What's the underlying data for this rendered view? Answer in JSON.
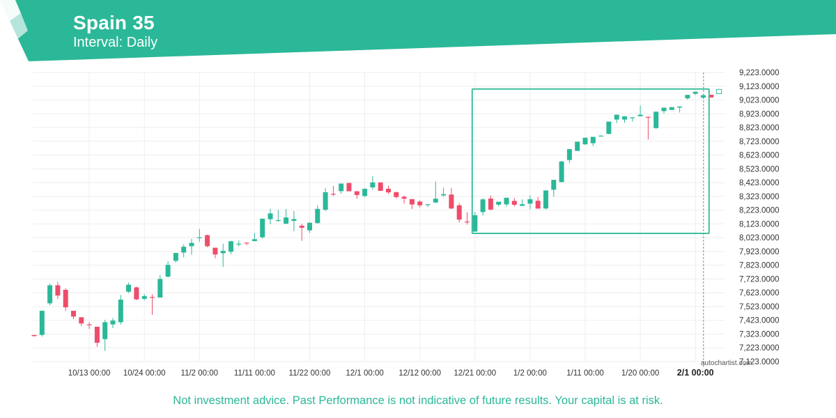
{
  "header": {
    "title": "Spain 35",
    "subtitle": "Interval: Daily"
  },
  "watermark": "autochartist.com",
  "disclaimer": "Not investment advice. Past Performance is not indicative of future results. Your capital is at risk.",
  "colors": {
    "brand": "#2bb898",
    "up": "#2bb898",
    "down": "#ee4d6a",
    "pattern_box": "#3fbf9e"
  },
  "chart_data": {
    "type": "candlestick",
    "title": "Spain 35",
    "ylim": [
      7123,
      9223
    ],
    "y_ticks": [
      "9,223.0000",
      "9,123.0000",
      "9,023.0000",
      "8,923.0000",
      "8,823.0000",
      "8,723.0000",
      "8,623.0000",
      "8,523.0000",
      "8,423.0000",
      "8,323.0000",
      "8,223.0000",
      "8,123.0000",
      "8,023.0000",
      "7,923.0000",
      "7,823.0000",
      "7,723.0000",
      "7,623.0000",
      "7,523.0000",
      "7,423.0000",
      "7,323.0000",
      "7,223.0000",
      "7,123.0000"
    ],
    "x_ticks": [
      {
        "label": "10/13 00:00",
        "index": 7
      },
      {
        "label": "10/24 00:00",
        "index": 14
      },
      {
        "label": "11/2 00:00",
        "index": 21
      },
      {
        "label": "11/11 00:00",
        "index": 28
      },
      {
        "label": "11/22 00:00",
        "index": 35
      },
      {
        "label": "12/1 00:00",
        "index": 42
      },
      {
        "label": "12/12 00:00",
        "index": 49
      },
      {
        "label": "12/21 00:00",
        "index": 56
      },
      {
        "label": "1/2 00:00",
        "index": 63
      },
      {
        "label": "1/11 00:00",
        "index": 70
      },
      {
        "label": "1/20 00:00",
        "index": 77
      },
      {
        "label": "2/1 00:00",
        "index": 84,
        "bold": true
      }
    ],
    "candles": [
      [
        7316,
        7316,
        7308,
        7306
      ],
      [
        7317,
        7493,
        7492,
        7305
      ],
      [
        7546,
        7689,
        7677,
        7532
      ],
      [
        7677,
        7702,
        7603,
        7578
      ],
      [
        7644,
        7657,
        7517,
        7490
      ],
      [
        7492,
        7492,
        7450,
        7431
      ],
      [
        7445,
        7445,
        7400,
        7380
      ],
      [
        7393,
        7410,
        7387,
        7360
      ],
      [
        7376,
        7376,
        7260,
        7230
      ],
      [
        7286,
        7426,
        7409,
        7200
      ],
      [
        7393,
        7440,
        7421,
        7366
      ],
      [
        7409,
        7607,
        7573,
        7392
      ],
      [
        7630,
        7697,
        7681,
        7620
      ],
      [
        7662,
        7667,
        7575,
        7569
      ],
      [
        7579,
        7614,
        7598,
        7569
      ],
      [
        7592,
        7612,
        7591,
        7462
      ],
      [
        7588,
        7752,
        7723,
        7588
      ],
      [
        7740,
        7851,
        7825,
        7734
      ],
      [
        7855,
        7897,
        7912,
        7842
      ],
      [
        7915,
        7974,
        7957,
        7880
      ],
      [
        7961,
        8014,
        7985,
        7900
      ],
      [
        8021,
        8086,
        8025,
        7992
      ],
      [
        8041,
        8046,
        7961,
        7953
      ],
      [
        7950,
        7950,
        7901,
        7873
      ],
      [
        7910,
        7979,
        7927,
        7810
      ],
      [
        7921,
        8000,
        7997,
        7903
      ],
      [
        7973,
        8003,
        7979,
        7960
      ],
      [
        7987,
        7980,
        7986,
        7967
      ],
      [
        7998,
        8058,
        8012,
        7996
      ],
      [
        8026,
        8160,
        8161,
        8016
      ],
      [
        8157,
        8233,
        8199,
        8121
      ],
      [
        8147,
        8225,
        8150,
        8140
      ],
      [
        8124,
        8232,
        8170,
        8130
      ],
      [
        8145,
        8216,
        8158,
        8070
      ],
      [
        8110,
        8124,
        8095,
        8000
      ],
      [
        8076,
        8135,
        8131,
        8058
      ],
      [
        8129,
        8258,
        8232,
        8125
      ],
      [
        8226,
        8382,
        8353,
        8216
      ],
      [
        8342,
        8399,
        8337,
        8324
      ],
      [
        8361,
        8398,
        8416,
        8342
      ],
      [
        8420,
        8422,
        8360,
        8360
      ],
      [
        8360,
        8358,
        8333,
        8305
      ],
      [
        8326,
        8381,
        8378,
        8317
      ],
      [
        8388,
        8470,
        8424,
        8371
      ],
      [
        8424,
        8402,
        8363,
        8380
      ],
      [
        8378,
        8400,
        8352,
        8340
      ],
      [
        8353,
        8358,
        8318,
        8308
      ],
      [
        8320,
        8329,
        8306,
        8270
      ],
      [
        8303,
        8303,
        8264,
        8231
      ],
      [
        8285,
        8295,
        8258,
        8243
      ],
      [
        8263,
        8266,
        8266,
        8245
      ],
      [
        8278,
        8430,
        8306,
        8275
      ],
      [
        8330,
        8386,
        8339,
        8320
      ],
      [
        8336,
        8385,
        8235,
        8229
      ],
      [
        8258,
        8274,
        8154,
        8133
      ],
      [
        8140,
        8207,
        8138,
        8118
      ],
      [
        8067,
        8210,
        8186,
        8066
      ],
      [
        8209,
        8309,
        8301,
        8184
      ],
      [
        8307,
        8330,
        8227,
        8221
      ],
      [
        8263,
        8283,
        8284,
        8250
      ],
      [
        8265,
        8305,
        8313,
        8248
      ],
      [
        8290,
        8310,
        8262,
        8249
      ],
      [
        8254,
        8302,
        8266,
        8255
      ],
      [
        8270,
        8331,
        8302,
        8230
      ],
      [
        8291,
        8318,
        8234,
        8238
      ],
      [
        8235,
        8230,
        8366,
        8227
      ],
      [
        8371,
        8320,
        8443,
        8402
      ],
      [
        8427,
        8581,
        8576,
        8424
      ],
      [
        8587,
        8602,
        8666,
        8565
      ],
      [
        8653,
        8658,
        8720,
        8692
      ],
      [
        8701,
        8715,
        8749,
        8696
      ],
      [
        8709,
        8689,
        8755,
        8746
      ],
      [
        8763,
        8766,
        8764,
        8757
      ],
      [
        8777,
        8793,
        8866,
        8773
      ],
      [
        8881,
        8891,
        8916,
        8856
      ],
      [
        8881,
        8873,
        8904,
        8858
      ],
      [
        8894,
        8870,
        8897,
        8866
      ],
      [
        8905,
        8908,
        8916,
        8983
      ],
      [
        8901,
        8837,
        8900,
        8736
      ],
      [
        8819,
        8839,
        8938,
        8813
      ],
      [
        8942,
        8925,
        8967,
        8937
      ],
      [
        8951,
        8969,
        8971,
        8950
      ],
      [
        8968,
        8932,
        8976,
        8972
      ],
      [
        9035,
        9051,
        9060,
        9026
      ],
      [
        9068,
        9074,
        9083,
        9060
      ],
      [
        9040,
        9049,
        9058,
        9032
      ],
      [
        9061,
        9042,
        9041,
        9058
      ],
      [
        9069,
        9079,
        9100,
        9076
      ]
    ],
    "pattern_box": {
      "start_index": 56,
      "end_index": 86,
      "top": 9103,
      "bottom": 8054
    },
    "current_marker_index": 86
  }
}
